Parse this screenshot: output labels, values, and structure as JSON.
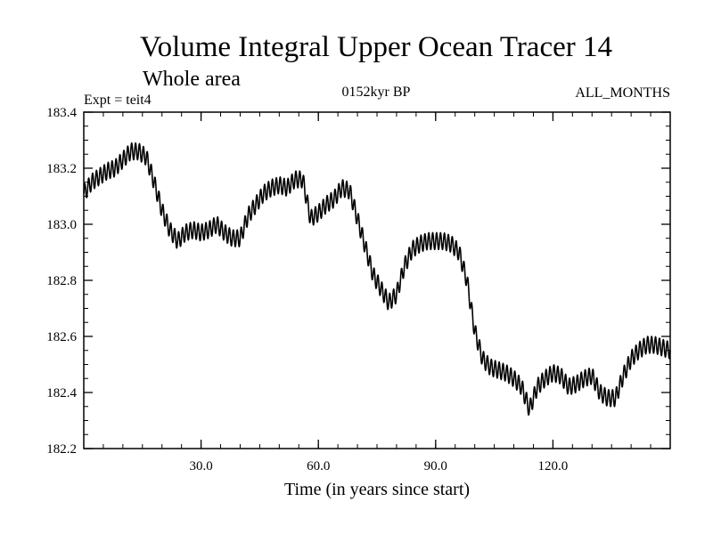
{
  "chart_data": {
    "type": "line",
    "title": "Volume Integral Upper Ocean Tracer 14",
    "subtitle": "Whole area",
    "info_left": "Expt = teit4",
    "info_center": "0152kyr BP",
    "info_right": "ALL_MONTHS",
    "xlabel": "Time (in years since start)",
    "ylabel": "",
    "xlim": [
      0,
      150
    ],
    "ylim": [
      182.2,
      183.4
    ],
    "xticks": [
      {
        "value": 30,
        "label": "30.0"
      },
      {
        "value": 60,
        "label": "60.0"
      },
      {
        "value": 90,
        "label": "90.0"
      },
      {
        "value": 120,
        "label": "120.0"
      }
    ],
    "yticks": [
      {
        "value": 182.2,
        "label": "182.2"
      },
      {
        "value": 182.4,
        "label": "182.4"
      },
      {
        "value": 182.6,
        "label": "182.6"
      },
      {
        "value": 182.8,
        "label": "182.8"
      },
      {
        "value": 183.0,
        "label": "183.0"
      },
      {
        "value": 183.2,
        "label": "183.2"
      },
      {
        "value": 183.4,
        "label": "183.4"
      }
    ],
    "seasonal_amplitude": 0.03,
    "series": [
      {
        "name": "Upper Ocean Tracer 14",
        "x": [
          0,
          2,
          4,
          6,
          8,
          10,
          12,
          14,
          16,
          18,
          20,
          22,
          24,
          26,
          28,
          30,
          32,
          34,
          36,
          38,
          40,
          42,
          44,
          46,
          48,
          50,
          52,
          54,
          56,
          58,
          60,
          62,
          64,
          66,
          68,
          70,
          72,
          74,
          76,
          78,
          80,
          82,
          84,
          86,
          88,
          90,
          92,
          94,
          96,
          98,
          100,
          102,
          104,
          106,
          108,
          110,
          112,
          114,
          116,
          118,
          120,
          122,
          124,
          126,
          128,
          130,
          132,
          134,
          136,
          138,
          140,
          142,
          144,
          146,
          148,
          150
        ],
        "values": [
          183.11,
          183.15,
          183.17,
          183.19,
          183.2,
          183.23,
          183.26,
          183.26,
          183.24,
          183.15,
          183.05,
          182.98,
          182.94,
          182.97,
          182.98,
          182.97,
          182.98,
          183.0,
          182.97,
          182.95,
          182.95,
          183.03,
          183.07,
          183.11,
          183.13,
          183.14,
          183.13,
          183.16,
          183.16,
          183.02,
          183.04,
          183.07,
          183.09,
          183.13,
          183.12,
          183.02,
          182.92,
          182.82,
          182.77,
          182.72,
          182.75,
          182.85,
          182.91,
          182.93,
          182.94,
          182.94,
          182.94,
          182.93,
          182.9,
          182.8,
          182.62,
          182.52,
          182.49,
          182.48,
          182.47,
          182.45,
          182.42,
          182.34,
          182.42,
          182.45,
          182.47,
          182.46,
          182.42,
          182.43,
          182.45,
          182.46,
          182.4,
          182.38,
          182.38,
          182.46,
          182.52,
          182.55,
          182.57,
          182.57,
          182.56,
          182.55
        ]
      }
    ]
  }
}
